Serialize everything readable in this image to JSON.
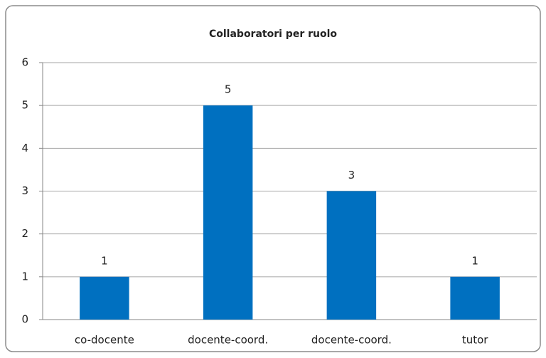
{
  "chart_data": {
    "type": "bar",
    "title": "Collaboratori per ruolo",
    "categories": [
      "co-docente",
      "docente-coord.",
      "docente-coord.",
      "tutor"
    ],
    "values": [
      1,
      5,
      3,
      1
    ],
    "color": "#0070c0",
    "ylim": [
      0,
      6
    ],
    "yticks": [
      0,
      1,
      2,
      3,
      4,
      5,
      6
    ],
    "grid": true,
    "data_labels": true
  }
}
